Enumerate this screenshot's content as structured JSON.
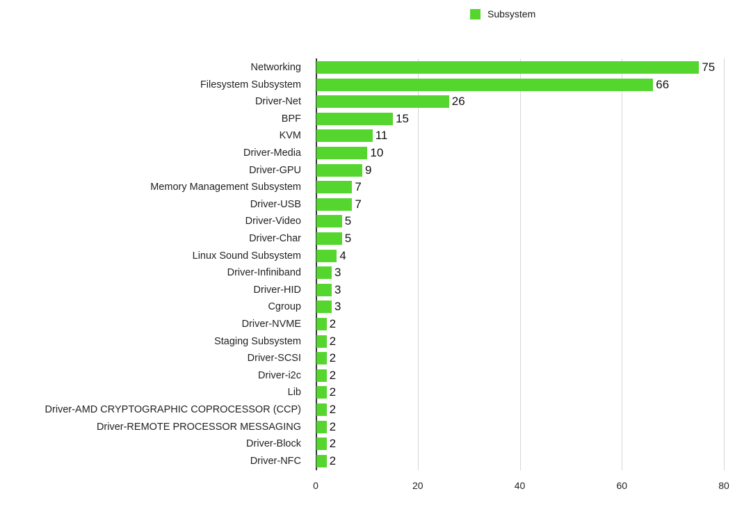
{
  "chart_data": {
    "type": "bar",
    "orientation": "horizontal",
    "title": "",
    "xlabel": "",
    "ylabel": "",
    "legend": {
      "entries": [
        "Subsystem"
      ],
      "position": "top"
    },
    "series": [
      {
        "name": "Subsystem",
        "color": "#55d62f",
        "values": [
          75,
          66,
          26,
          15,
          11,
          10,
          9,
          7,
          7,
          5,
          5,
          4,
          3,
          3,
          3,
          2,
          2,
          2,
          2,
          2,
          2,
          2,
          2,
          2
        ]
      }
    ],
    "categories": [
      "Networking",
      "Filesystem Subsystem",
      "Driver-Net",
      "BPF",
      "KVM",
      "Driver-Media",
      "Driver-GPU",
      "Memory Management Subsystem",
      "Driver-USB",
      "Driver-Video",
      "Driver-Char",
      "Linux Sound Subsystem",
      "Driver-Infiniband",
      "Driver-HID",
      "Cgroup",
      "Driver-NVME",
      "Staging Subsystem",
      "Driver-SCSI",
      "Driver-i2c",
      "Lib",
      "Driver-AMD CRYPTOGRAPHIC COPROCESSOR (CCP)",
      "Driver-REMOTE PROCESSOR MESSAGING",
      "Driver-Block",
      "Driver-NFC"
    ],
    "values": [
      75,
      66,
      26,
      15,
      11,
      10,
      9,
      7,
      7,
      5,
      5,
      4,
      3,
      3,
      3,
      2,
      2,
      2,
      2,
      2,
      2,
      2,
      2,
      2
    ],
    "xlim": [
      0,
      80
    ],
    "xticks": [
      "0",
      "20",
      "40",
      "60",
      "80"
    ],
    "grid": true,
    "data_labels": true
  },
  "legend_label": "Subsystem"
}
